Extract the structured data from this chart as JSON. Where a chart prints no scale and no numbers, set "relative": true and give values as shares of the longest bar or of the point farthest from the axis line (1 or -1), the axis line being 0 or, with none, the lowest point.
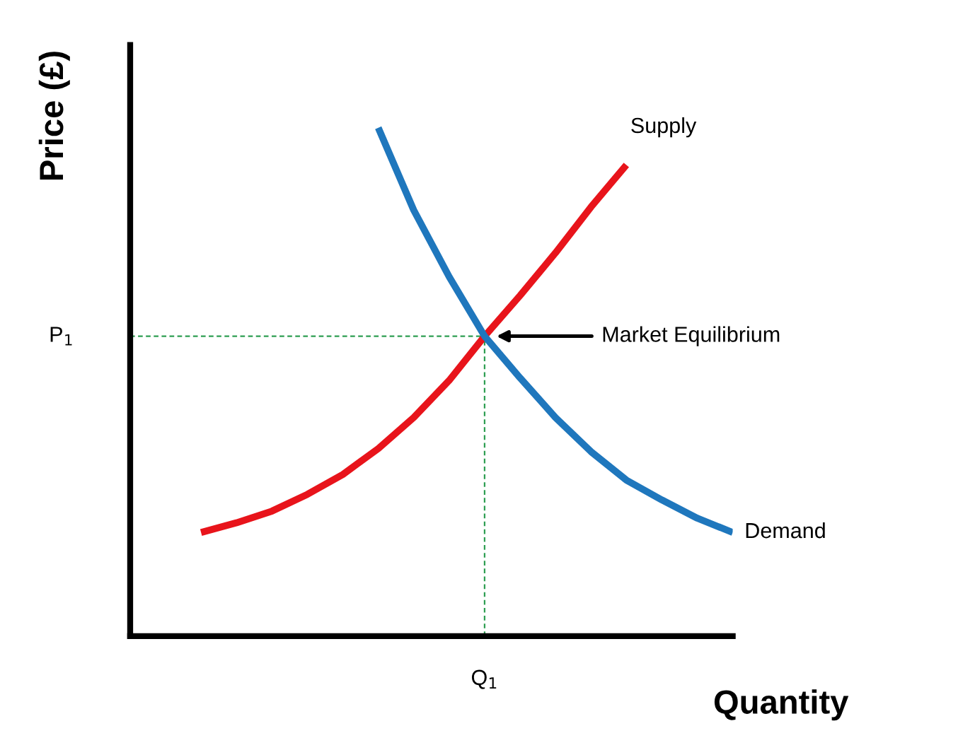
{
  "chart_data": {
    "type": "line",
    "relative": true,
    "xlabel": "Quantity",
    "ylabel": "Price (£)",
    "categories": [
      null,
      null,
      null,
      null,
      null,
      null,
      null,
      null,
      null,
      null,
      null,
      null,
      null,
      null,
      null,
      null,
      null,
      null
    ],
    "line_style": "solid",
    "series": [
      {
        "name": "Supply",
        "color": "#e8141b",
        "values": [
          null,
          null,
          0.204,
          0.223,
          0.246,
          0.279,
          0.318,
          0.369,
          0.43,
          0.503,
          0.59,
          0.67,
          0.754,
          0.844,
          0.927,
          null,
          null,
          null
        ]
      },
      {
        "name": "Demand",
        "color": "#1f77bd",
        "values": [
          null,
          null,
          null,
          null,
          null,
          null,
          null,
          1,
          0.838,
          0.707,
          0.59,
          0.508,
          0.43,
          0.363,
          0.307,
          0.268,
          0.232,
          0.204
        ]
      }
    ],
    "ref_lines": [
      {
        "axis": "y",
        "value": 0.59,
        "label": "P$_{1}$",
        "color": "#2e9e52",
        "line_style": "dashed"
      }
    ],
    "annotations": [
      "Market Equilibrium",
      "Q$_{1}$"
    ]
  }
}
